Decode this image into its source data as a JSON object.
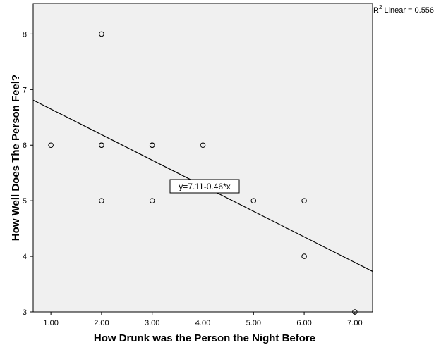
{
  "chart_data": {
    "type": "scatter",
    "title": "",
    "xlabel": "How Drunk was the Person the Night Before",
    "ylabel": "How Well Does The Person Feel?",
    "xlim": [
      0.65,
      7.35
    ],
    "ylim": [
      3,
      8.55
    ],
    "x_ticks": [
      1,
      2,
      3,
      4,
      5,
      6,
      7
    ],
    "x_tick_labels": [
      "1.00",
      "2.00",
      "3.00",
      "4.00",
      "5.00",
      "6.00",
      "7.00"
    ],
    "y_ticks": [
      3,
      4,
      5,
      6,
      7,
      8
    ],
    "y_tick_labels": [
      "3",
      "4",
      "5",
      "6",
      "7",
      "8"
    ],
    "grid": false,
    "points": [
      {
        "x": 1,
        "y": 6
      },
      {
        "x": 2,
        "y": 8
      },
      {
        "x": 2,
        "y": 6
      },
      {
        "x": 2,
        "y": 6
      },
      {
        "x": 2,
        "y": 5
      },
      {
        "x": 3,
        "y": 6
      },
      {
        "x": 3,
        "y": 6
      },
      {
        "x": 3,
        "y": 5
      },
      {
        "x": 4,
        "y": 6
      },
      {
        "x": 5,
        "y": 5
      },
      {
        "x": 6,
        "y": 5
      },
      {
        "x": 6,
        "y": 4
      },
      {
        "x": 7,
        "y": 3
      }
    ],
    "fit_line": {
      "intercept": 7.11,
      "slope": -0.46,
      "equation_label": "y=7.11-0.46*x",
      "r2_label": "Linear = 0.556",
      "r2_prefix": "R",
      "r2_superscript": "2"
    },
    "colors": {
      "plot_background": "#f0f0f0",
      "axis": "#000000",
      "marker_stroke": "#000000",
      "fit_line": "#000000"
    }
  }
}
